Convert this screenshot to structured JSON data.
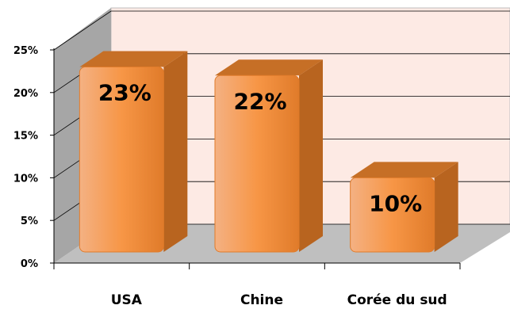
{
  "chart_data": {
    "type": "bar",
    "style": "3d",
    "categories": [
      "USA",
      "Chine",
      "Corée du sud"
    ],
    "values": [
      23,
      22,
      10
    ],
    "data_labels": [
      "23%",
      "22%",
      "10%"
    ],
    "ylim": [
      0,
      25
    ],
    "yticks": [
      "0%",
      "5%",
      "10%",
      "15%",
      "20%",
      "25%"
    ],
    "title": "",
    "xlabel": "",
    "ylabel": "",
    "grid": true,
    "legend": "none",
    "colors": {
      "bar_front": "#F79646",
      "bar_side": "#B8641F",
      "bar_top": "#C66F26",
      "back_wall": "#FDEAE4",
      "side_wall": "#A6A6A6",
      "floor": "#BFBFBF",
      "grid": "#000000"
    }
  }
}
